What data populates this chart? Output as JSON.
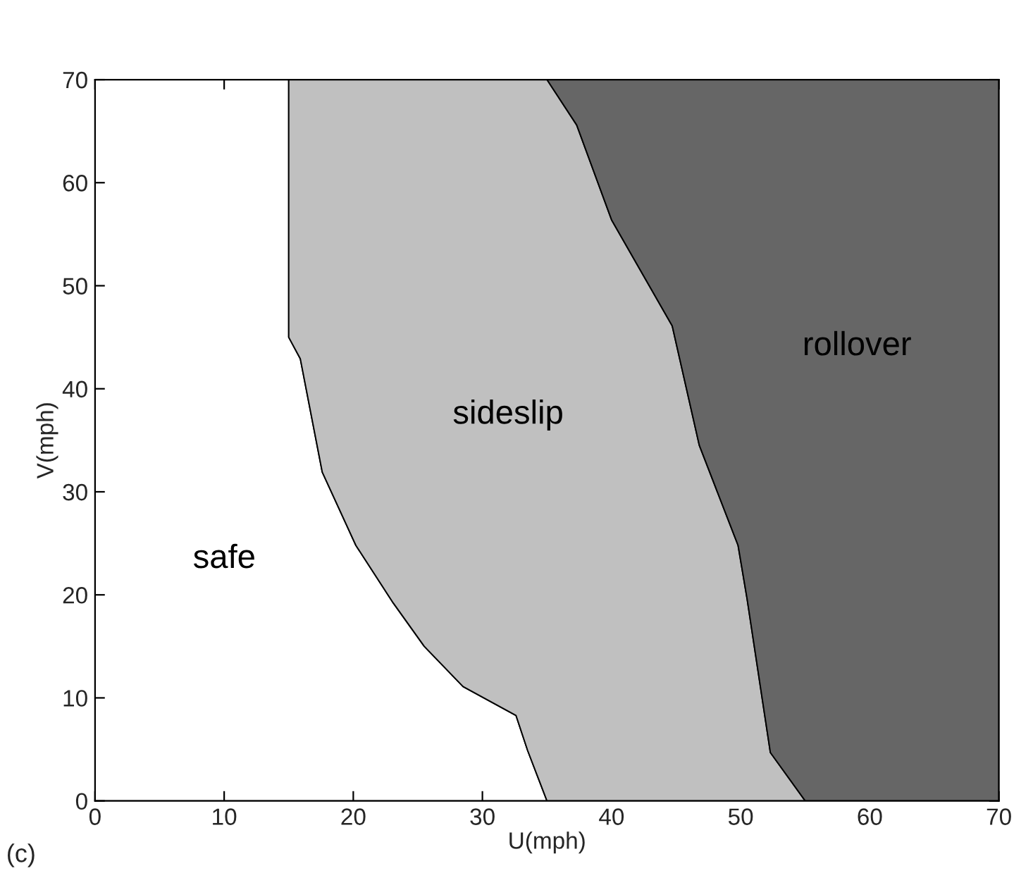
{
  "chart_data": {
    "type": "area",
    "stacked": true,
    "xlabel": "U(mph)",
    "ylabel": "V(mph)",
    "xlim": [
      0,
      70
    ],
    "ylim": [
      0,
      70
    ],
    "xticks": [
      0,
      10,
      20,
      30,
      40,
      50,
      60,
      70
    ],
    "yticks": [
      0,
      10,
      20,
      30,
      40,
      50,
      60,
      70
    ],
    "x": [
      0,
      15,
      15,
      15.9,
      17.6,
      20.2,
      23.1,
      25.5,
      28.5,
      32.6,
      33.5,
      35,
      37.3,
      40,
      44.7,
      46.8,
      49.8,
      50.5,
      52.3,
      55,
      70
    ],
    "series": [
      {
        "name": "safe",
        "color": "#ffffff",
        "values": [
          70,
          70,
          45,
          42.9,
          31.9,
          24.8,
          19.2,
          15,
          11.1,
          8.3,
          4.9,
          0,
          null,
          null,
          null,
          null,
          null,
          null,
          null,
          null,
          null
        ]
      },
      {
        "name": "sideslip",
        "color": "#c0c0c0",
        "values": [
          null,
          null,
          25,
          27.1,
          38.1,
          45.2,
          50.8,
          55,
          58.9,
          61.7,
          65.1,
          70,
          65.6,
          56.4,
          46.1,
          34.5,
          24.8,
          19.6,
          4.7,
          0,
          null
        ]
      },
      {
        "name": "rollover",
        "color": "#666666",
        "values": [
          null,
          null,
          null,
          null,
          null,
          null,
          null,
          null,
          null,
          null,
          null,
          0,
          4.4,
          13.6,
          23.9,
          35.5,
          45.2,
          50.4,
          65.3,
          70,
          70
        ]
      }
    ],
    "annotations": [
      "(c)"
    ]
  }
}
